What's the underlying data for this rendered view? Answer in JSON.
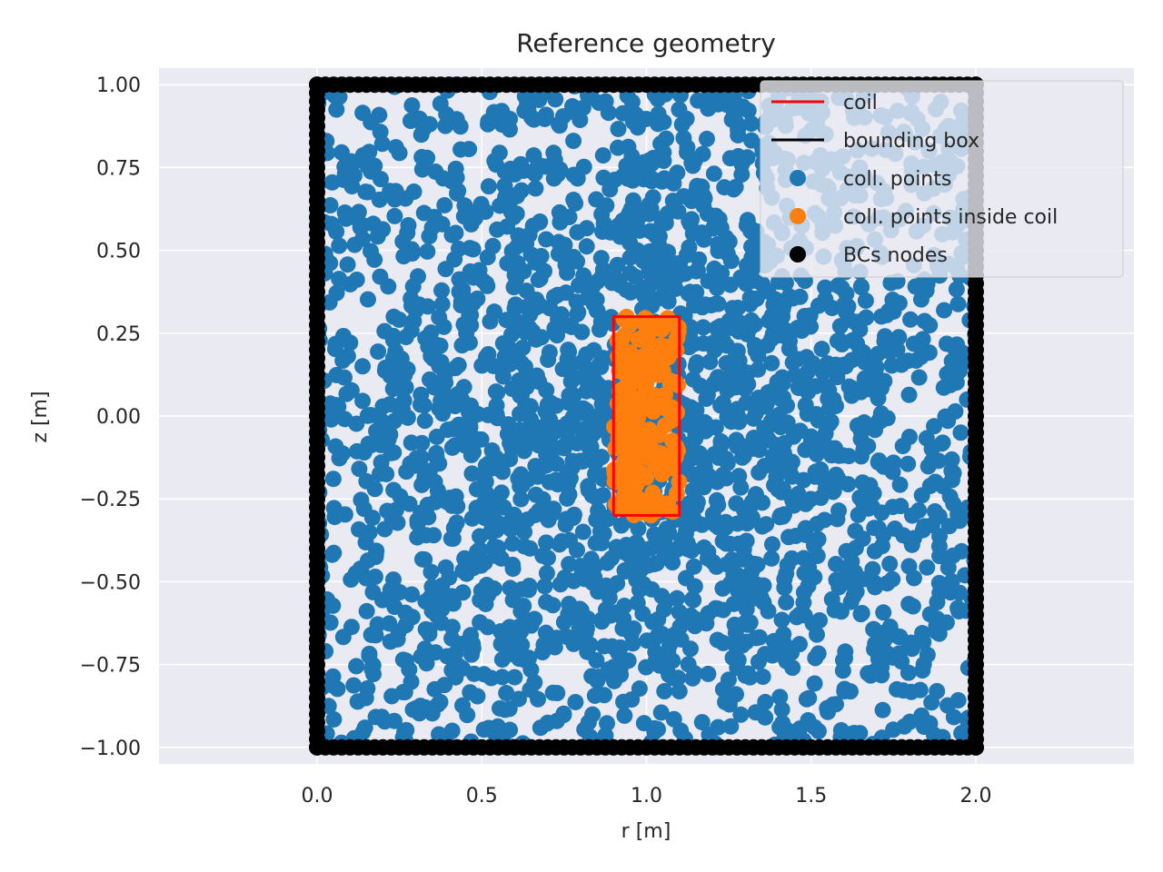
{
  "chart_data": {
    "type": "scatter",
    "title": "Reference geometry",
    "xlabel": "r [m]",
    "ylabel": "z [m]",
    "xlim": [
      -0.48,
      2.48
    ],
    "ylim": [
      -1.05,
      1.05
    ],
    "xticks": [
      0.0,
      0.5,
      1.0,
      1.5,
      2.0
    ],
    "xtick_labels": [
      "0.0",
      "0.5",
      "1.0",
      "1.5",
      "2.0"
    ],
    "yticks": [
      1.0,
      0.75,
      0.5,
      0.25,
      0.0,
      -0.25,
      -0.5,
      -0.75,
      -1.0
    ],
    "ytick_labels": [
      "1.00",
      "0.75",
      "0.50",
      "0.25",
      "0.00",
      "−0.25",
      "−0.50",
      "−0.75",
      "−1.00"
    ],
    "grid": true,
    "background": "#eaeaf2",
    "legend_position": "top-right",
    "legend": [
      {
        "label": "coil",
        "kind": "line",
        "color": "#ff0000"
      },
      {
        "label": "bounding box",
        "kind": "line",
        "color": "#000000"
      },
      {
        "label": "coll. points",
        "kind": "marker",
        "color": "#1f77b4"
      },
      {
        "label": "coll. points inside coil",
        "kind": "marker",
        "color": "#ff7f0e"
      },
      {
        "label": "BCs nodes",
        "kind": "marker",
        "color": "#000000"
      }
    ],
    "coil": {
      "r": [
        0.9,
        1.1,
        1.1,
        0.9,
        0.9
      ],
      "z": [
        -0.3,
        -0.3,
        0.3,
        0.3,
        -0.3
      ],
      "color": "#ff0000"
    },
    "bounding_box": {
      "r": [
        0.0,
        2.0,
        2.0,
        0.0,
        0.0
      ],
      "z": [
        -1.0,
        -1.0,
        1.0,
        1.0,
        -1.0
      ],
      "color": "#000000"
    },
    "collocation_points": {
      "description": "random collocation points uniformly scattered in the box r in [0,2], z in [-1,1], denser near the coil",
      "r_range": [
        0.0,
        2.0
      ],
      "z_range": [
        -1.0,
        1.0
      ],
      "approx_count": 2500,
      "color": "#1f77b4"
    },
    "collocation_points_inside_coil": {
      "r_range": [
        0.9,
        1.1
      ],
      "z_range": [
        -0.3,
        0.3
      ],
      "approx_count": 180,
      "color": "#ff7f0e"
    },
    "bc_nodes": {
      "description": "dense nodes along the bounding box perimeter",
      "per_side": 80,
      "color": "#000000"
    }
  }
}
